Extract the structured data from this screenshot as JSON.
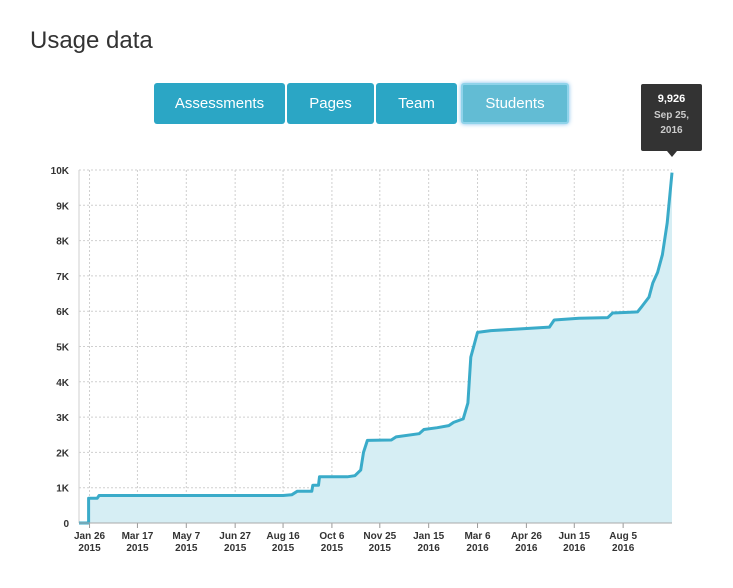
{
  "page": {
    "title": "Usage data"
  },
  "tabs": [
    {
      "label": "Assessments",
      "active": false
    },
    {
      "label": "Pages",
      "active": false
    },
    {
      "label": "Team",
      "active": false
    },
    {
      "label": "Students",
      "active": true
    }
  ],
  "tooltip": {
    "value": "9,926",
    "date_line1": "Sep 25,",
    "date_line2": "2016"
  },
  "colors": {
    "accent": "#2ba6c5",
    "line": "#3aabc9",
    "area": "#d6eef4",
    "grid": "#cfcfcf",
    "tooltip_bg": "#333333"
  },
  "chart_data": {
    "type": "area",
    "title": "",
    "xlabel": "",
    "ylabel": "",
    "ylim": [
      0,
      10000
    ],
    "grid": true,
    "x_ticks": [
      {
        "date": "2015-01-26",
        "label1": "Jan 26",
        "label2": "2015"
      },
      {
        "date": "2015-03-17",
        "label1": "Mar 17",
        "label2": "2015"
      },
      {
        "date": "2015-05-07",
        "label1": "May 7",
        "label2": "2015"
      },
      {
        "date": "2015-06-27",
        "label1": "Jun 27",
        "label2": "2015"
      },
      {
        "date": "2015-08-16",
        "label1": "Aug 16",
        "label2": "2015"
      },
      {
        "date": "2015-10-06",
        "label1": "Oct 6",
        "label2": "2015"
      },
      {
        "date": "2015-11-25",
        "label1": "Nov 25",
        "label2": "2015"
      },
      {
        "date": "2016-01-15",
        "label1": "Jan 15",
        "label2": "2016"
      },
      {
        "date": "2016-03-06",
        "label1": "Mar 6",
        "label2": "2016"
      },
      {
        "date": "2016-04-26",
        "label1": "Apr 26",
        "label2": "2016"
      },
      {
        "date": "2016-06-15",
        "label1": "Jun 15",
        "label2": "2016"
      },
      {
        "date": "2016-08-05",
        "label1": "Aug 5",
        "label2": "2016"
      }
    ],
    "y_ticks": [
      {
        "value": 0,
        "label": "0"
      },
      {
        "value": 1000,
        "label": "1K"
      },
      {
        "value": 2000,
        "label": "2K"
      },
      {
        "value": 3000,
        "label": "3K"
      },
      {
        "value": 4000,
        "label": "4K"
      },
      {
        "value": 5000,
        "label": "5K"
      },
      {
        "value": 6000,
        "label": "6K"
      },
      {
        "value": 7000,
        "label": "7K"
      },
      {
        "value": 8000,
        "label": "8K"
      },
      {
        "value": 9000,
        "label": "9K"
      },
      {
        "value": 10000,
        "label": "10K"
      }
    ],
    "series": [
      {
        "points": [
          [
            "2015-01-15",
            0
          ],
          [
            "2015-01-25",
            0
          ],
          [
            "2015-01-25",
            700
          ],
          [
            "2015-02-03",
            700
          ],
          [
            "2015-02-05",
            780
          ],
          [
            "2015-08-16",
            780
          ],
          [
            "2015-08-25",
            800
          ],
          [
            "2015-08-31",
            900
          ],
          [
            "2015-09-15",
            900
          ],
          [
            "2015-09-16",
            1070
          ],
          [
            "2015-09-22",
            1070
          ],
          [
            "2015-09-23",
            1310
          ],
          [
            "2015-10-22",
            1310
          ],
          [
            "2015-10-30",
            1340
          ],
          [
            "2015-11-05",
            1500
          ],
          [
            "2015-11-08",
            2000
          ],
          [
            "2015-11-12",
            2340
          ],
          [
            "2015-12-07",
            2350
          ],
          [
            "2015-12-12",
            2440
          ],
          [
            "2016-01-05",
            2530
          ],
          [
            "2016-01-10",
            2650
          ],
          [
            "2016-01-24",
            2700
          ],
          [
            "2016-02-05",
            2760
          ],
          [
            "2016-02-10",
            2850
          ],
          [
            "2016-02-20",
            2950
          ],
          [
            "2016-02-25",
            3400
          ],
          [
            "2016-02-28",
            4700
          ],
          [
            "2016-03-02",
            5000
          ],
          [
            "2016-03-06",
            5400
          ],
          [
            "2016-03-20",
            5450
          ],
          [
            "2016-04-20",
            5500
          ],
          [
            "2016-05-20",
            5550
          ],
          [
            "2016-05-25",
            5750
          ],
          [
            "2016-06-20",
            5800
          ],
          [
            "2016-07-20",
            5820
          ],
          [
            "2016-07-25",
            5950
          ],
          [
            "2016-08-20",
            5980
          ],
          [
            "2016-08-25",
            6150
          ],
          [
            "2016-09-01",
            6400
          ],
          [
            "2016-09-05",
            6800
          ],
          [
            "2016-09-10",
            7100
          ],
          [
            "2016-09-15",
            7600
          ],
          [
            "2016-09-20",
            8500
          ],
          [
            "2016-09-25",
            9926
          ]
        ]
      }
    ]
  }
}
